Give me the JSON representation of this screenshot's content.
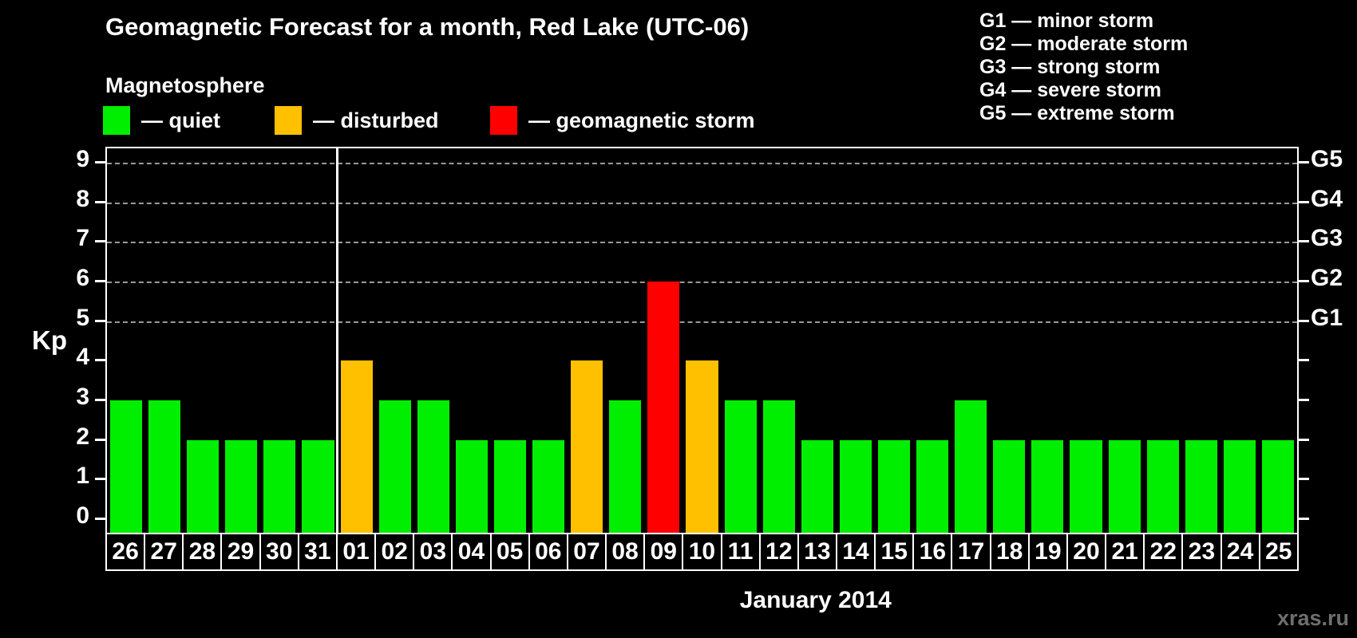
{
  "title": "Geomagnetic Forecast for a month, Red Lake (UTC-06)",
  "subtitle": "Magnetosphere",
  "legend": {
    "items": [
      {
        "key": "quiet",
        "label": "— quiet",
        "color": "#00ef00"
      },
      {
        "key": "disturbed",
        "label": "— disturbed",
        "color": "#ffc000"
      },
      {
        "key": "storm",
        "label": "— geomagnetic storm",
        "color": "#ff0000"
      }
    ]
  },
  "storm_scale": [
    "G1 — minor storm",
    "G2 — moderate storm",
    "G3 — strong storm",
    "G4 — severe storm",
    "G5 — extreme storm"
  ],
  "watermark": "xras.ru",
  "chart_data": {
    "type": "bar",
    "title": "Geomagnetic Forecast for a month, Red Lake (UTC-06)",
    "xlabel": "January 2014",
    "ylabel": "Kp",
    "ylim": [
      -0.4,
      9.4
    ],
    "yticks": [
      0,
      1,
      2,
      3,
      4,
      5,
      6,
      7,
      8,
      9
    ],
    "gridline_kps": [
      5,
      6,
      7,
      8,
      9
    ],
    "right_axis_labels": [
      {
        "kp": 5,
        "label": "G1"
      },
      {
        "kp": 6,
        "label": "G2"
      },
      {
        "kp": 7,
        "label": "G3"
      },
      {
        "kp": 8,
        "label": "G4"
      },
      {
        "kp": 9,
        "label": "G5"
      }
    ],
    "colors": {
      "quiet": "#00ef00",
      "disturbed": "#ffc000",
      "storm": "#ff0000"
    },
    "grid": "dashed horizontal at Kp 5-9",
    "legend_position": "top-left",
    "month_separator_after_index": 5,
    "categories": [
      "26",
      "27",
      "28",
      "29",
      "30",
      "31",
      "01",
      "02",
      "03",
      "04",
      "05",
      "06",
      "07",
      "08",
      "09",
      "10",
      "11",
      "12",
      "13",
      "14",
      "15",
      "16",
      "17",
      "18",
      "19",
      "20",
      "21",
      "22",
      "23",
      "24",
      "25"
    ],
    "values": [
      3,
      3,
      2,
      2,
      2,
      2,
      4,
      3,
      3,
      2,
      2,
      2,
      4,
      3,
      6,
      4,
      3,
      3,
      2,
      2,
      2,
      2,
      3,
      2,
      2,
      2,
      2,
      2,
      2,
      2,
      2
    ],
    "statuses": [
      "quiet",
      "quiet",
      "quiet",
      "quiet",
      "quiet",
      "quiet",
      "disturbed",
      "quiet",
      "quiet",
      "quiet",
      "quiet",
      "quiet",
      "disturbed",
      "quiet",
      "storm",
      "disturbed",
      "quiet",
      "quiet",
      "quiet",
      "quiet",
      "quiet",
      "quiet",
      "quiet",
      "quiet",
      "quiet",
      "quiet",
      "quiet",
      "quiet",
      "quiet",
      "quiet",
      "quiet"
    ]
  }
}
